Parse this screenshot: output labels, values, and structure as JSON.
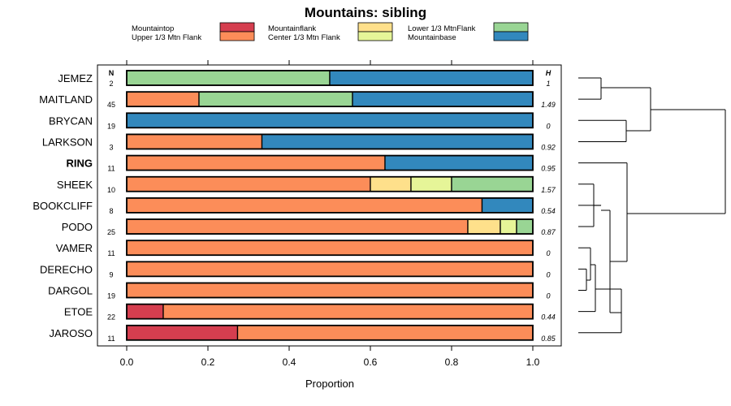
{
  "chart_data": {
    "type": "bar",
    "orientation": "horizontal",
    "stacked": true,
    "title": "Mountains: sibling",
    "xlabel": "Proportion",
    "xlim": [
      0,
      1
    ],
    "xticks": [
      "0.0",
      "0.2",
      "0.4",
      "0.6",
      "0.8",
      "1.0"
    ],
    "n_header": "N",
    "h_header": "H",
    "highlighted_category": "RING",
    "legend": [
      {
        "name": "Mountaintop",
        "color": "#d53e4f"
      },
      {
        "name": "Upper 1/3 Mtn Flank",
        "color": "#fc8d59"
      },
      {
        "name": "Mountainflank",
        "color": "#fee08b"
      },
      {
        "name": "Center 1/3 Mtn Flank",
        "color": "#e6f598"
      },
      {
        "name": "Lower 1/3 MtnFlank",
        "color": "#99d594"
      },
      {
        "name": "Mountainbase",
        "color": "#3288bd"
      }
    ],
    "categories": [
      "JEMEZ",
      "MAITLAND",
      "BRYCAN",
      "LARKSON",
      "RING",
      "SHEEK",
      "BOOKCLIFF",
      "PODO",
      "VAMER",
      "DERECHO",
      "DARGOL",
      "ETOE",
      "JAROSO"
    ],
    "n": [
      "2",
      "45",
      "19",
      "3",
      "11",
      "10",
      "8",
      "25",
      "11",
      "9",
      "19",
      "22",
      "11"
    ],
    "h": [
      "1",
      "1.49",
      "0",
      "0.92",
      "0.95",
      "1.57",
      "0.54",
      "0.87",
      "0",
      "0",
      "0",
      "0.44",
      "0.85"
    ],
    "series": [
      {
        "name": "Mountaintop",
        "values": [
          0,
          0,
          0,
          0,
          0,
          0,
          0,
          0,
          0,
          0,
          0,
          0.09,
          0.273
        ]
      },
      {
        "name": "Upper 1/3 Mtn Flank",
        "values": [
          0,
          0.178,
          0,
          0.333,
          0.636,
          0.6,
          0.875,
          0.84,
          1,
          1,
          1,
          0.91,
          0.727
        ]
      },
      {
        "name": "Mountainflank",
        "values": [
          0,
          0,
          0,
          0,
          0,
          0.1,
          0,
          0.08,
          0,
          0,
          0,
          0,
          0
        ]
      },
      {
        "name": "Center 1/3 Mtn Flank",
        "values": [
          0,
          0,
          0,
          0,
          0,
          0.1,
          0,
          0.04,
          0,
          0,
          0,
          0,
          0
        ]
      },
      {
        "name": "Lower 1/3 MtnFlank",
        "values": [
          0.5,
          0.378,
          0,
          0,
          0,
          0.2,
          0,
          0.04,
          0,
          0,
          0,
          0,
          0
        ]
      },
      {
        "name": "Mountainbase",
        "values": [
          0.5,
          0.444,
          1,
          0.667,
          0.364,
          0,
          0.125,
          0,
          0,
          0,
          0,
          0,
          0
        ]
      }
    ]
  }
}
